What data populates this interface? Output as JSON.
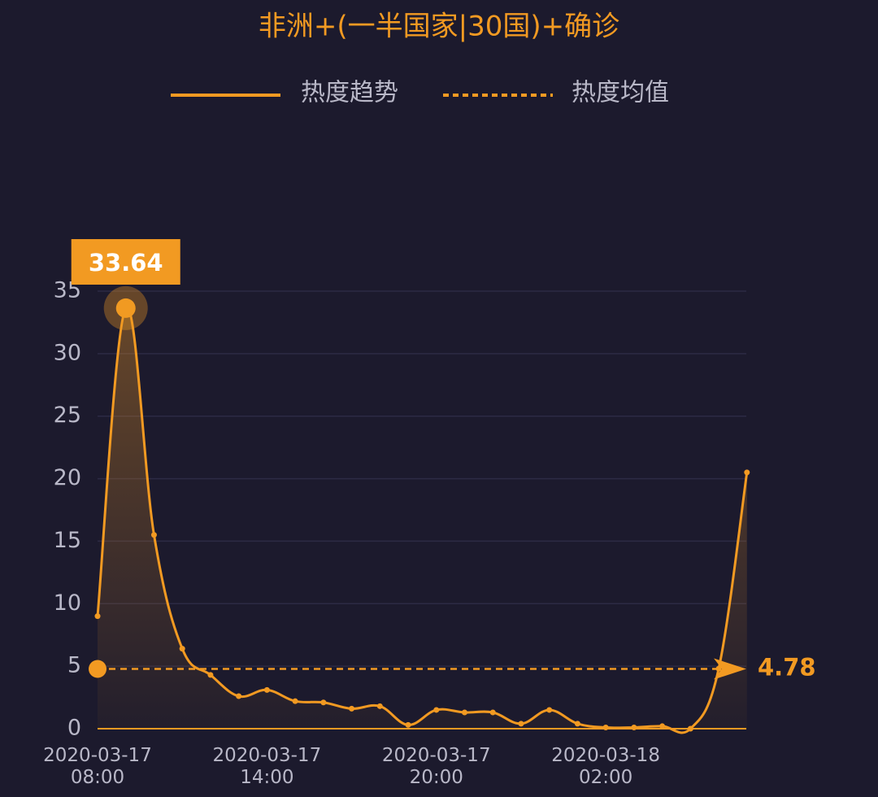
{
  "chart_data": {
    "type": "line",
    "title": "非洲+(一半国家|30国)+确诊",
    "categories": [
      "2020-03-17 08:00",
      null,
      null,
      null,
      null,
      null,
      "2020-03-17 14:00",
      null,
      null,
      null,
      null,
      null,
      "2020-03-17 20:00",
      null,
      null,
      null,
      null,
      null,
      "2020-03-18 02:00",
      null,
      null,
      null,
      null,
      null
    ],
    "series": [
      {
        "name": "热度趋势",
        "color": "#f29a22",
        "values": [
          9.0,
          33.64,
          15.5,
          6.4,
          4.3,
          2.6,
          3.1,
          2.2,
          2.1,
          1.6,
          1.8,
          0.3,
          1.5,
          1.3,
          1.3,
          0.4,
          1.5,
          0.4,
          0.1,
          0.1,
          0.2,
          0.0,
          4.8,
          20.5
        ]
      }
    ],
    "mean_line": {
      "name": "热度均值",
      "value": 4.78
    },
    "ylim": [
      0,
      35
    ],
    "yticks": [
      0,
      5,
      10,
      15,
      20,
      25,
      30,
      35
    ],
    "grid": true
  }
}
